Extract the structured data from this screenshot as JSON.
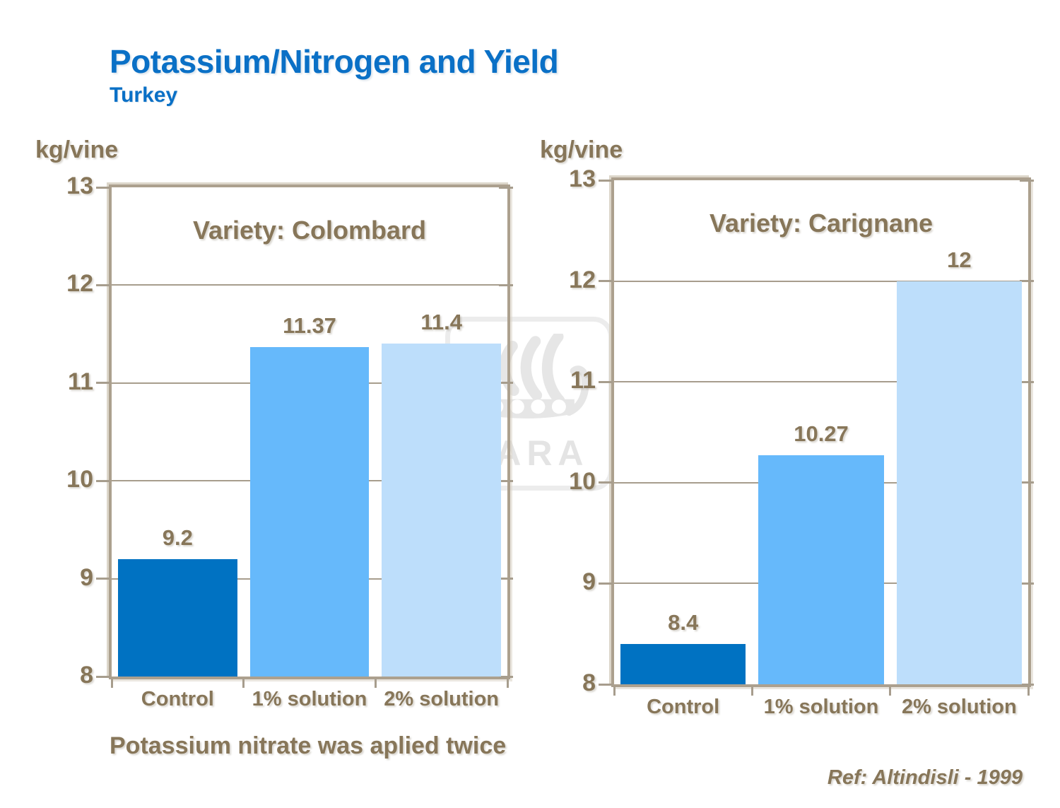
{
  "page": {
    "title": "Potassium/Nitrogen and Yield",
    "subtitle": "Turkey",
    "footnote": "Potassium nitrate was aplied twice",
    "reference": "Ref: Altindisli - 1999",
    "watermark_text": "YARA"
  },
  "colors": {
    "title_blue": "#0a70c6",
    "text_brown": "#877659",
    "chart_border": "#aca08e",
    "gridline": "#a79d8d",
    "watermark_gray": "#e7e7e7",
    "bar_colors": [
      "#0072c2",
      "#66b9fb",
      "#bddefb"
    ]
  },
  "chart_data": [
    {
      "type": "bar",
      "title": "Variety: Colombard",
      "ylabel": "kg/vine",
      "xlabel": "",
      "categories": [
        "Control",
        "1% solution",
        "2% solution"
      ],
      "values": [
        9.2,
        11.37,
        11.4
      ],
      "value_labels": [
        "9.2",
        "11.37",
        "11.4"
      ],
      "ylim": [
        8,
        13
      ],
      "yticks": [
        13,
        12,
        11,
        10,
        9,
        8
      ],
      "grid": true,
      "legend": "none"
    },
    {
      "type": "bar",
      "title": "Variety: Carignane",
      "ylabel": "kg/vine",
      "xlabel": "",
      "categories": [
        "Control",
        "1% solution",
        "2% solution"
      ],
      "values": [
        8.4,
        10.27,
        12
      ],
      "value_labels": [
        "8.4",
        "10.27",
        "12"
      ],
      "ylim": [
        8,
        13
      ],
      "yticks": [
        13,
        12,
        11,
        10,
        9,
        8
      ],
      "grid": true,
      "legend": "none"
    }
  ]
}
